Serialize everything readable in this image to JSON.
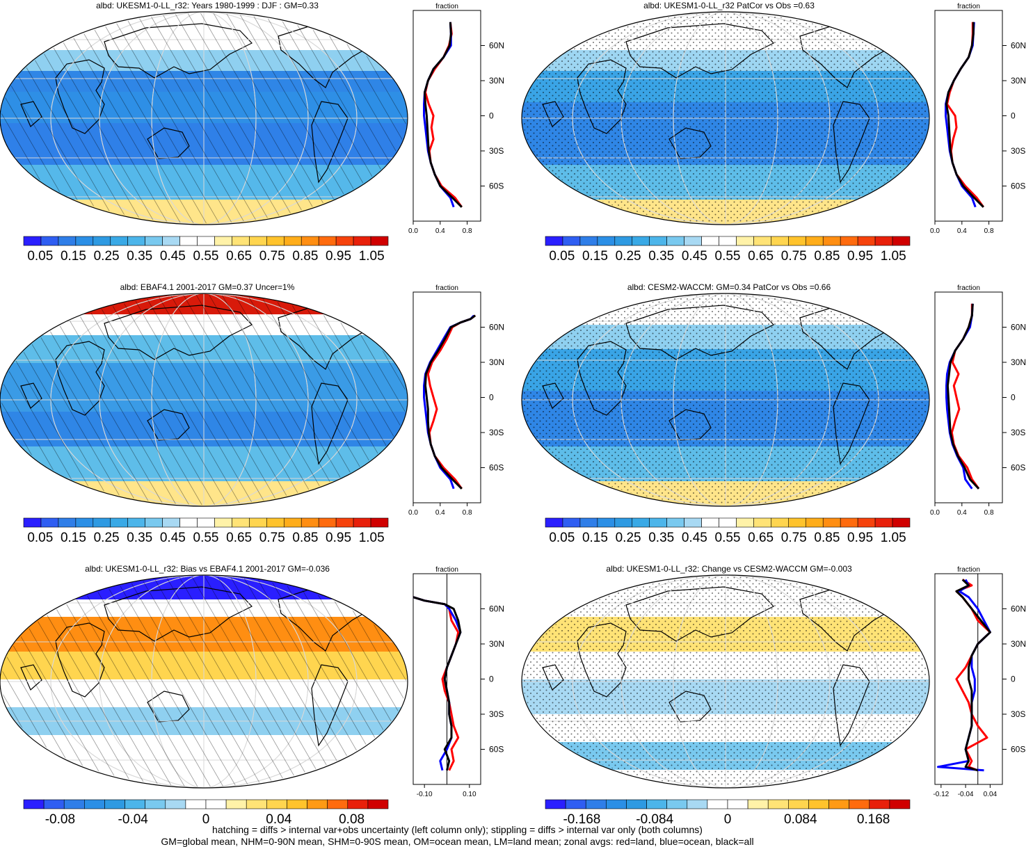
{
  "figure": {
    "footnote_line1": "hatching = diffs > internal var+obs uncertainty (left column only); stippling = diffs > internal var only (both columns)",
    "footnote_line2": "GM=global mean, NHM=0-90N mean, SHM=0-90S mean, OM=ocean mean, LM=land mean; zonal avgs: red=land, blue=ocean, black=all"
  },
  "colors": {
    "land": "#ff0000",
    "ocean": "#0000ff",
    "all": "#000000",
    "abs_palette": [
      "#2a1fff",
      "#2f5ef2",
      "#2f7ee8",
      "#2b8fe6",
      "#2e9ae2",
      "#39a9e6",
      "#4cb5ea",
      "#79c9ef",
      "#a8d9f3",
      "#ffffff",
      "#ffffff",
      "#fff2a8",
      "#ffe376",
      "#ffd54f",
      "#ffc32c",
      "#ffad1a",
      "#ff8e12",
      "#ff6b0e",
      "#f6420c",
      "#e8200a",
      "#d00000"
    ],
    "diff_palette": [
      "#2a1fff",
      "#2f5ef2",
      "#2f7ee8",
      "#2b8fe6",
      "#2e9ae2",
      "#4cb5ea",
      "#79c9ef",
      "#a8d9f3",
      "#ffffff",
      "#ffffff",
      "#fff2a8",
      "#ffe376",
      "#ffd54f",
      "#ffc32c",
      "#ff9a14",
      "#ff6b0e",
      "#e8200a",
      "#d00000"
    ]
  },
  "chart_data": [
    {
      "type": "heatmap",
      "title": "albd: UKESM1-0-LL_r32: Years 1980-1999 : DJF : GM=0.33",
      "colorbar_labels": [
        "0.05",
        "0.15",
        "0.25",
        "0.35",
        "0.45",
        "0.55",
        "0.65",
        "0.75",
        "0.85",
        "0.95",
        "1.05"
      ],
      "overlay": "hatching",
      "zonal": {
        "header": "fraction",
        "xticks": [
          "0.0",
          "0.4",
          "0.8"
        ],
        "xlim": [
          0,
          1.0
        ],
        "yticks": [
          "60N",
          "30N",
          "0",
          "30S",
          "60S"
        ],
        "lat": [
          80,
          70,
          60,
          50,
          40,
          30,
          20,
          10,
          0,
          -10,
          -20,
          -30,
          -40,
          -50,
          -60,
          -70,
          -78
        ],
        "series": [
          {
            "name": "land",
            "values": [
              0.55,
              0.57,
              0.53,
              0.45,
              0.32,
              0.22,
              0.18,
              0.23,
              0.3,
              0.27,
              0.3,
              0.24,
              0.26,
              0.32,
              0.42,
              0.62,
              0.72
            ]
          },
          {
            "name": "ocean",
            "values": [
              0.55,
              0.56,
              0.56,
              0.45,
              0.3,
              0.22,
              0.17,
              0.16,
              0.16,
              0.18,
              0.2,
              0.22,
              0.26,
              0.32,
              0.4,
              0.55,
              0.6
            ]
          },
          {
            "name": "all",
            "values": [
              0.55,
              0.56,
              0.54,
              0.45,
              0.3,
              0.22,
              0.17,
              0.18,
              0.2,
              0.21,
              0.22,
              0.23,
              0.26,
              0.32,
              0.4,
              0.58,
              0.72
            ]
          }
        ]
      }
    },
    {
      "type": "heatmap",
      "title": "albd: UKESM1-0-LL_r32 PatCor vs Obs =0.63",
      "colorbar_labels": [
        "0.05",
        "0.15",
        "0.25",
        "0.35",
        "0.45",
        "0.55",
        "0.65",
        "0.75",
        "0.85",
        "0.95",
        "1.05"
      ],
      "overlay": "stippling",
      "zonal": {
        "header": "fraction",
        "xticks": [
          "0.0",
          "0.4",
          "0.8"
        ],
        "xlim": [
          0,
          1.0
        ],
        "yticks": [
          "60N",
          "30N",
          "0",
          "30S",
          "60S"
        ],
        "lat": [
          80,
          70,
          60,
          50,
          40,
          30,
          20,
          10,
          0,
          -10,
          -20,
          -30,
          -40,
          -50,
          -60,
          -70,
          -78
        ],
        "series": [
          {
            "name": "land",
            "values": [
              0.56,
              0.56,
              0.55,
              0.5,
              0.38,
              0.28,
              0.22,
              0.18,
              0.3,
              0.32,
              0.27,
              0.24,
              0.26,
              0.32,
              0.45,
              0.62,
              0.72
            ]
          },
          {
            "name": "ocean",
            "values": [
              0.58,
              0.57,
              0.56,
              0.5,
              0.38,
              0.28,
              0.2,
              0.16,
              0.16,
              0.18,
              0.2,
              0.22,
              0.26,
              0.32,
              0.4,
              0.55,
              0.6
            ]
          },
          {
            "name": "all",
            "values": [
              0.57,
              0.57,
              0.55,
              0.5,
              0.38,
              0.28,
              0.2,
              0.17,
              0.2,
              0.21,
              0.22,
              0.23,
              0.26,
              0.32,
              0.42,
              0.58,
              0.72
            ]
          }
        ]
      }
    },
    {
      "type": "heatmap",
      "title": "albd: EBAF4.1 2001-2017 GM=0.37 Uncer=1%",
      "colorbar_labels": [
        "0.05",
        "0.15",
        "0.25",
        "0.35",
        "0.45",
        "0.55",
        "0.65",
        "0.75",
        "0.85",
        "0.95",
        "1.05"
      ],
      "overlay": "hatching",
      "zonal": {
        "header": "fraction",
        "xticks": [
          "0.0",
          "0.4",
          "0.8"
        ],
        "xlim": [
          0,
          1.0
        ],
        "yticks": [
          "60N",
          "30N",
          "0",
          "30S",
          "60S"
        ],
        "lat": [
          70,
          67,
          64,
          60,
          50,
          40,
          30,
          20,
          10,
          0,
          -10,
          -20,
          -30,
          -40,
          -50,
          -60,
          -70,
          -78
        ],
        "series": [
          {
            "name": "land",
            "values": [
              0.92,
              0.85,
              0.7,
              0.58,
              0.5,
              0.4,
              0.28,
              0.22,
              0.25,
              0.3,
              0.35,
              0.3,
              0.24,
              0.26,
              0.32,
              0.45,
              0.62,
              0.72
            ]
          },
          {
            "name": "ocean",
            "values": [
              0.9,
              0.85,
              0.7,
              0.55,
              0.45,
              0.35,
              0.25,
              0.18,
              0.16,
              0.16,
              0.18,
              0.2,
              0.22,
              0.26,
              0.32,
              0.4,
              0.55,
              0.6
            ]
          },
          {
            "name": "all",
            "values": [
              0.92,
              0.85,
              0.7,
              0.56,
              0.47,
              0.37,
              0.26,
              0.19,
              0.18,
              0.2,
              0.22,
              0.22,
              0.23,
              0.26,
              0.32,
              0.42,
              0.58,
              0.72
            ]
          }
        ]
      }
    },
    {
      "type": "heatmap",
      "title": "albd: CESM2-WACCM: GM=0.34 PatCor vs Obs =0.66",
      "colorbar_labels": [
        "0.05",
        "0.15",
        "0.25",
        "0.35",
        "0.45",
        "0.55",
        "0.65",
        "0.75",
        "0.85",
        "0.95",
        "1.05"
      ],
      "overlay": "stippling",
      "zonal": {
        "header": "fraction",
        "xticks": [
          "0.0",
          "0.4",
          "0.8"
        ],
        "xlim": [
          0,
          1.0
        ],
        "yticks": [
          "60N",
          "30N",
          "0",
          "30S",
          "60S"
        ],
        "lat": [
          80,
          70,
          60,
          50,
          40,
          30,
          20,
          10,
          0,
          -10,
          -20,
          -30,
          -40,
          -50,
          -60,
          -70,
          -78
        ],
        "series": [
          {
            "name": "land",
            "values": [
              0.55,
              0.55,
              0.5,
              0.42,
              0.3,
              0.26,
              0.35,
              0.28,
              0.32,
              0.36,
              0.3,
              0.25,
              0.28,
              0.35,
              0.48,
              0.55,
              0.65
            ]
          },
          {
            "name": "ocean",
            "values": [
              0.56,
              0.55,
              0.52,
              0.42,
              0.3,
              0.22,
              0.18,
              0.17,
              0.17,
              0.18,
              0.2,
              0.22,
              0.26,
              0.33,
              0.42,
              0.45,
              0.55
            ]
          },
          {
            "name": "all",
            "values": [
              0.56,
              0.55,
              0.5,
              0.42,
              0.3,
              0.23,
              0.21,
              0.19,
              0.2,
              0.21,
              0.22,
              0.23,
              0.27,
              0.34,
              0.44,
              0.52,
              0.65
            ]
          }
        ]
      }
    },
    {
      "type": "heatmap",
      "title": "albd: UKESM1-0-LL_r32: Bias vs EBAF4.1 2001-2017 GM=-0.036",
      "colorbar_labels": [
        "-0.08",
        "-0.04",
        "0",
        "0.04",
        "0.08"
      ],
      "overlay": "hatching",
      "zonal": {
        "header": "fraction",
        "xticks": [
          "-0.10",
          "0.10"
        ],
        "xlim": [
          -0.15,
          0.15
        ],
        "yticks": [
          "60N",
          "30N",
          "0",
          "30S",
          "60S"
        ],
        "lat": [
          70,
          67,
          64,
          60,
          50,
          40,
          30,
          20,
          10,
          0,
          -10,
          -20,
          -30,
          -40,
          -50,
          -60,
          -70,
          -78
        ],
        "series": [
          {
            "name": "land",
            "values": [
              -0.15,
              -0.1,
              -0.01,
              0.01,
              0.02,
              0.05,
              0.04,
              0.02,
              0.0,
              -0.02,
              -0.01,
              0.01,
              0.02,
              0.03,
              0.05,
              0.02,
              0.03,
              0.01
            ]
          },
          {
            "name": "ocean",
            "values": [
              -0.15,
              -0.1,
              -0.01,
              0.01,
              0.04,
              0.06,
              0.04,
              0.02,
              0.0,
              -0.01,
              0.0,
              0.01,
              0.01,
              0.02,
              0.02,
              0.0,
              -0.03,
              -0.02
            ]
          },
          {
            "name": "all",
            "values": [
              -0.15,
              -0.1,
              -0.01,
              0.03,
              0.05,
              0.06,
              0.04,
              0.02,
              0.0,
              -0.01,
              0.0,
              0.01,
              0.01,
              0.02,
              0.02,
              -0.01,
              0.01,
              0.0
            ]
          }
        ]
      }
    },
    {
      "type": "heatmap",
      "title": "albd: UKESM1-0-LL_r32: Change vs CESM2-WACCM GM=-0.003",
      "colorbar_labels": [
        "-0.168",
        "-0.084",
        "0",
        "0.084",
        "0.168"
      ],
      "overlay": "stippling",
      "zonal": {
        "header": "fraction",
        "xticks": [
          "-0.12",
          "-0.04",
          "0.04"
        ],
        "xlim": [
          -0.14,
          0.08
        ],
        "yticks": [
          "60N",
          "30N",
          "0",
          "30S",
          "60S"
        ],
        "lat": [
          85,
          80,
          75,
          70,
          60,
          50,
          40,
          30,
          20,
          10,
          0,
          -10,
          -20,
          -30,
          -40,
          -50,
          -60,
          -70,
          -75,
          -78
        ],
        "series": [
          {
            "name": "land",
            "values": [
              -0.05,
              -0.02,
              -0.07,
              -0.05,
              -0.02,
              0.0,
              0.04,
              0.0,
              -0.02,
              -0.04,
              -0.07,
              -0.05,
              -0.03,
              -0.02,
              0.0,
              0.03,
              -0.04,
              -0.02,
              -0.03,
              0.0
            ]
          },
          {
            "name": "ocean",
            "values": [
              -0.04,
              -0.03,
              -0.06,
              -0.03,
              0.0,
              0.02,
              0.04,
              0.0,
              -0.02,
              -0.02,
              -0.01,
              -0.01,
              -0.02,
              -0.02,
              -0.02,
              -0.03,
              -0.04,
              -0.03,
              -0.13,
              0.02
            ]
          },
          {
            "name": "all",
            "values": [
              -0.05,
              -0.03,
              -0.07,
              -0.05,
              -0.02,
              0.01,
              0.04,
              0.0,
              -0.02,
              -0.03,
              -0.03,
              -0.02,
              -0.02,
              -0.02,
              -0.02,
              -0.03,
              -0.04,
              -0.03,
              -0.04,
              0.0
            ]
          }
        ]
      }
    }
  ]
}
